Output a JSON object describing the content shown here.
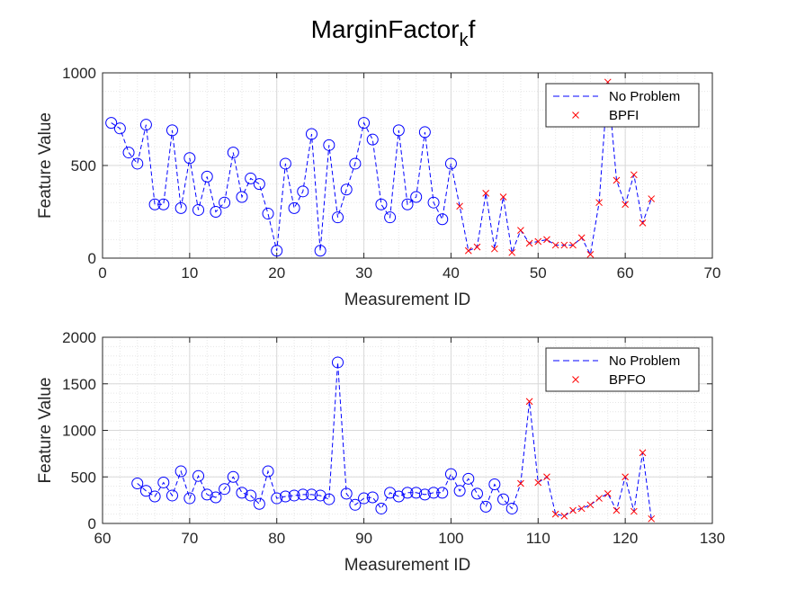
{
  "figure": {
    "title_main": "MarginFactor",
    "title_sub": "k",
    "title_tail": "f"
  },
  "colors": {
    "no_problem": "#0000ff",
    "fault": "#ff0000",
    "line": "#0000ff",
    "grid_major": "#d9d9d9",
    "grid_minor": "#e6e6e6",
    "axis": "#262626"
  },
  "chart_data": [
    {
      "type": "line",
      "xlabel": "Measurement ID",
      "ylabel": "Feature Value",
      "xlim": [
        0,
        70
      ],
      "ylim": [
        0,
        1000
      ],
      "xticks": [
        0,
        10,
        20,
        30,
        40,
        50,
        60,
        70
      ],
      "yticks": [
        0,
        500,
        1000
      ],
      "grid": "on (major + minor, dotted)",
      "legend": {
        "placement": "top-right",
        "entries": [
          "No Problem",
          "BPFI"
        ]
      },
      "series": [
        {
          "name": "No Problem",
          "marker": "circle",
          "x": [
            1,
            2,
            3,
            4,
            5,
            6,
            7,
            8,
            9,
            10,
            11,
            12,
            13,
            14,
            15,
            16,
            17,
            18,
            19,
            20,
            21,
            22,
            23,
            24,
            25,
            26,
            27,
            28,
            29,
            30,
            31,
            32,
            33,
            34,
            35,
            36,
            37,
            38,
            39,
            40
          ],
          "y": [
            730,
            700,
            570,
            510,
            720,
            290,
            290,
            690,
            270,
            540,
            260,
            440,
            250,
            300,
            570,
            330,
            430,
            400,
            240,
            40,
            510,
            270,
            360,
            670,
            40,
            610,
            220,
            370,
            510,
            730,
            640,
            290,
            220,
            690,
            290,
            330,
            680,
            300,
            210,
            510
          ]
        },
        {
          "name": "BPFI",
          "marker": "x",
          "x": [
            41,
            42,
            43,
            44,
            45,
            46,
            47,
            48,
            49,
            50,
            51,
            52,
            53,
            54,
            55,
            56,
            57,
            58,
            59,
            60,
            61,
            62,
            63
          ],
          "y": [
            280,
            40,
            60,
            350,
            50,
            330,
            30,
            150,
            80,
            90,
            100,
            70,
            70,
            70,
            110,
            20,
            300,
            950,
            420,
            290,
            450,
            190,
            320
          ]
        }
      ]
    },
    {
      "type": "line",
      "xlabel": "Measurement ID",
      "ylabel": "Feature Value",
      "xlim": [
        60,
        130
      ],
      "ylim": [
        0,
        2000
      ],
      "xticks": [
        60,
        70,
        80,
        90,
        100,
        110,
        120,
        130
      ],
      "yticks": [
        0,
        500,
        1000,
        1500,
        2000
      ],
      "grid": "on (major + minor, dotted)",
      "legend": {
        "placement": "top-right",
        "entries": [
          "No Problem",
          "BPFO"
        ]
      },
      "series": [
        {
          "name": "No Problem",
          "marker": "circle",
          "x": [
            64,
            65,
            66,
            67,
            68,
            69,
            70,
            71,
            72,
            73,
            74,
            75,
            76,
            77,
            78,
            79,
            80,
            81,
            82,
            83,
            84,
            85,
            86,
            87,
            88,
            89,
            90,
            91,
            92,
            93,
            94,
            95,
            96,
            97,
            98,
            99,
            100,
            101,
            102,
            103,
            104,
            105,
            106,
            107
          ],
          "y": [
            430,
            350,
            290,
            440,
            300,
            560,
            270,
            510,
            310,
            280,
            370,
            500,
            330,
            300,
            210,
            560,
            270,
            290,
            300,
            310,
            310,
            300,
            260,
            1730,
            320,
            200,
            270,
            280,
            160,
            330,
            290,
            330,
            330,
            310,
            330,
            330,
            530,
            350,
            480,
            320,
            180,
            420,
            260,
            160
          ]
        },
        {
          "name": "BPFO",
          "marker": "x",
          "x": [
            108,
            109,
            110,
            111,
            112,
            113,
            114,
            115,
            116,
            117,
            118,
            119,
            120,
            121,
            122,
            123
          ],
          "y": [
            430,
            1310,
            440,
            500,
            100,
            80,
            140,
            160,
            200,
            270,
            320,
            140,
            500,
            130,
            760,
            50
          ]
        }
      ]
    }
  ]
}
